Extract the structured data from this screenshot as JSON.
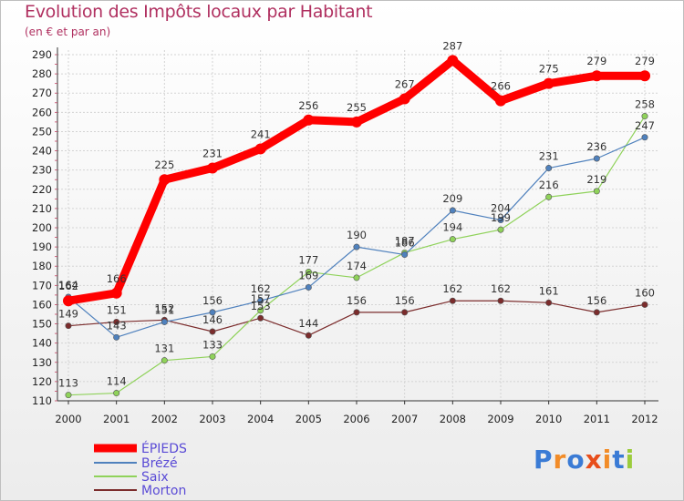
{
  "title": "Evolution des Impôts locaux par Habitant",
  "subtitle": "(en € et par an)",
  "logo": {
    "text": "Proxiti",
    "letters": [
      "P",
      "r",
      "o",
      "x",
      "i",
      "t",
      "i"
    ],
    "colors": [
      "#3a7bd5",
      "#f28c28",
      "#3a7bd5",
      "#e84e1b",
      "#f28c28",
      "#3a7bd5",
      "#9ccc3c"
    ]
  },
  "chart_data": {
    "type": "line",
    "title": "Evolution des Impôts locaux par Habitant",
    "subtitle": "(en € et par an)",
    "xlabel": "",
    "ylabel": "",
    "x": [
      "2000",
      "2001",
      "2002",
      "2003",
      "2004",
      "2005",
      "2006",
      "2007",
      "2008",
      "2009",
      "2010",
      "2011",
      "2012"
    ],
    "ylim": [
      110,
      290
    ],
    "yticks": [
      110,
      120,
      130,
      140,
      150,
      160,
      170,
      180,
      190,
      200,
      210,
      220,
      230,
      240,
      250,
      260,
      270,
      280,
      290
    ],
    "grid": true,
    "legend_position": "bottom-left",
    "series": [
      {
        "name": "ÉPIEDS",
        "color": "#ff0000",
        "width": 9,
        "values": [
          162,
          166,
          225,
          231,
          241,
          256,
          255,
          267,
          287,
          266,
          275,
          279,
          279
        ],
        "labels": [
          "162",
          "166",
          "225",
          "231",
          "241",
          "256",
          "255",
          "267",
          "287",
          "266",
          "275",
          "279",
          "279"
        ]
      },
      {
        "name": "Brézé",
        "color": "#4f81bd",
        "width": 1.2,
        "values": [
          164,
          143,
          151,
          156,
          162,
          169,
          190,
          186,
          209,
          204,
          231,
          236,
          247
        ],
        "labels": [
          "164",
          "143",
          "151",
          "156",
          "162",
          "169",
          "190",
          "186",
          "209",
          "204",
          "231",
          "236",
          "247"
        ]
      },
      {
        "name": "Saix",
        "color": "#8fd25a",
        "width": 1.2,
        "values": [
          113,
          114,
          131,
          133,
          157,
          177,
          174,
          187,
          194,
          199,
          216,
          219,
          258
        ],
        "labels": [
          "113",
          "114",
          "131",
          "133",
          "157",
          "177",
          "174",
          "187",
          "194",
          "199",
          "216",
          "219",
          "258"
        ]
      },
      {
        "name": "Morton",
        "color": "#7b2c2c",
        "width": 1.2,
        "values": [
          149,
          151,
          152,
          146,
          153,
          144,
          156,
          156,
          162,
          162,
          161,
          156,
          160
        ],
        "labels": [
          "149",
          "151",
          "152",
          "146",
          "153",
          "144",
          "156",
          "156",
          "162",
          "162",
          "161",
          "156",
          "160"
        ]
      }
    ]
  }
}
